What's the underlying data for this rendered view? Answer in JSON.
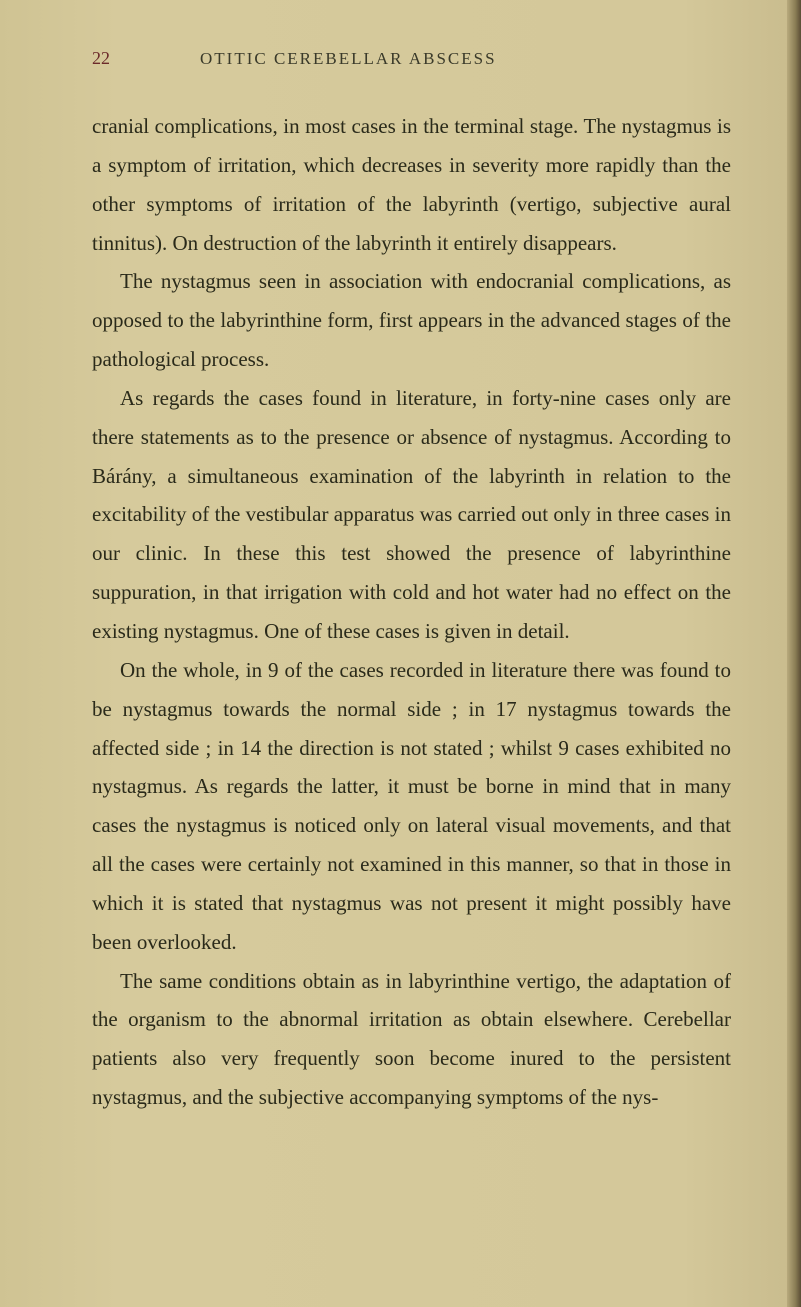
{
  "page_number": "22",
  "running_head": "OTITIC CEREBELLAR ABSCESS",
  "paragraphs": {
    "p1": "cranial complications, in most cases in the terminal stage. The nystagmus is a symptom of irritation, which decreases in severity more rapidly than the other symptoms of irritation of the labyrinth (vertigo, subjective aural tinnitus). On destruction of the labyrinth it entirely disappears.",
    "p2": "The nystagmus seen in association with endocranial complications, as opposed to the labyrinthine form, first appears in the advanced stages of the pathological process.",
    "p3": "As regards the cases found in literature, in forty-nine cases only are there statements as to the presence or absence of nystagmus. According to Bárány, a simul­taneous examination of the labyrinth in relation to the excitability of the vestibular apparatus was carried out only in three cases in our clinic. In these this test showed the presence of labyrinthine suppuration, in that irrigation with cold and hot water had no effect on the existing nystagmus. One of these cases is given in detail.",
    "p4": "On the whole, in 9 of the cases recorded in literature there was found to be nystagmus towards the normal side ; in 17 nystagmus towards the affected side ; in 14 the direc­tion is not stated ; whilst 9 cases exhibited no nystagmus. As regards the latter, it must be borne in mind that in many cases the nystagmus is noticed only on lateral visual movements, and that all the cases were certainly not examined in this manner, so that in those in which it is stated that nystagmus was not present it might possibly have been overlooked.",
    "p5": "The same conditions obtain as in labyrinthine vertigo, the adaptation of the organism to the abnormal irritation as obtain elsewhere. Cerebellar patients also very fre­quently soon become inured to the persistent nystagmus, and the subjective accompanying symptoms of the nys-"
  },
  "colors": {
    "background": "#d4c89a",
    "text": "#2a2a1a",
    "page_number": "#6b2a2a",
    "running_head": "#3a3a2a"
  },
  "typography": {
    "body_fontsize": 21,
    "header_fontsize": 17,
    "page_number_fontsize": 18,
    "line_height": 1.85,
    "font_family": "Georgia serif"
  }
}
